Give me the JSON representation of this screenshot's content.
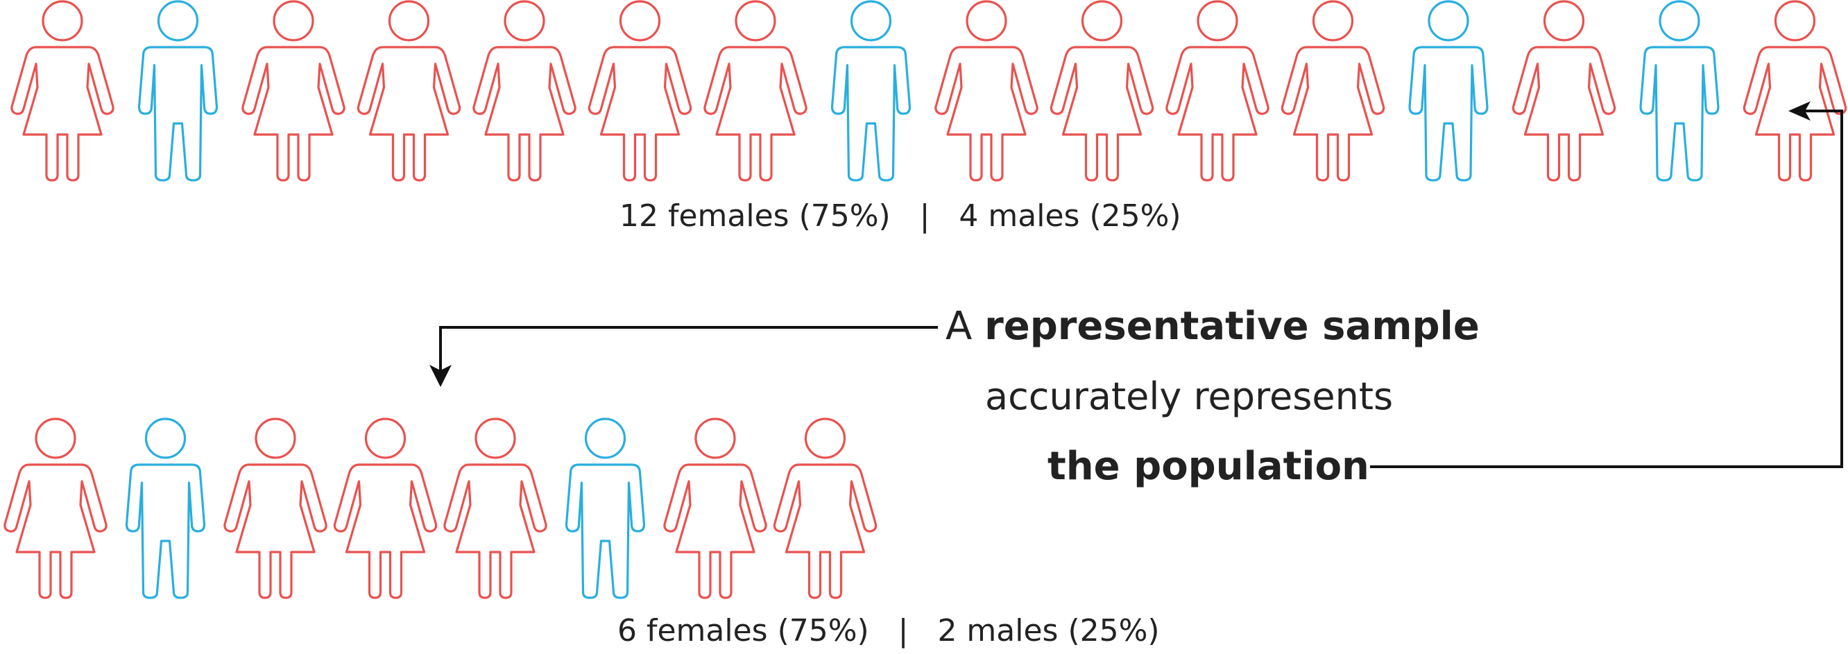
{
  "colors": {
    "female": "#e8524f",
    "male": "#29aee0",
    "text": "#222222",
    "arrow": "#111111"
  },
  "population": {
    "figures": [
      "female",
      "male",
      "female",
      "female",
      "female",
      "female",
      "female",
      "male",
      "female",
      "female",
      "female",
      "female",
      "male",
      "female",
      "male",
      "female"
    ],
    "caption": "12 females (75%)   |   4 males (25%)"
  },
  "sample": {
    "figures": [
      "female",
      "male",
      "female",
      "female",
      "female",
      "male",
      "female",
      "female"
    ],
    "caption": "6 females (75%)   |   2 males (25%)"
  },
  "message": {
    "line1_prefix": "A ",
    "line1_bold": "representative sample",
    "line2": "accurately represents",
    "line3_bold": "the population"
  }
}
